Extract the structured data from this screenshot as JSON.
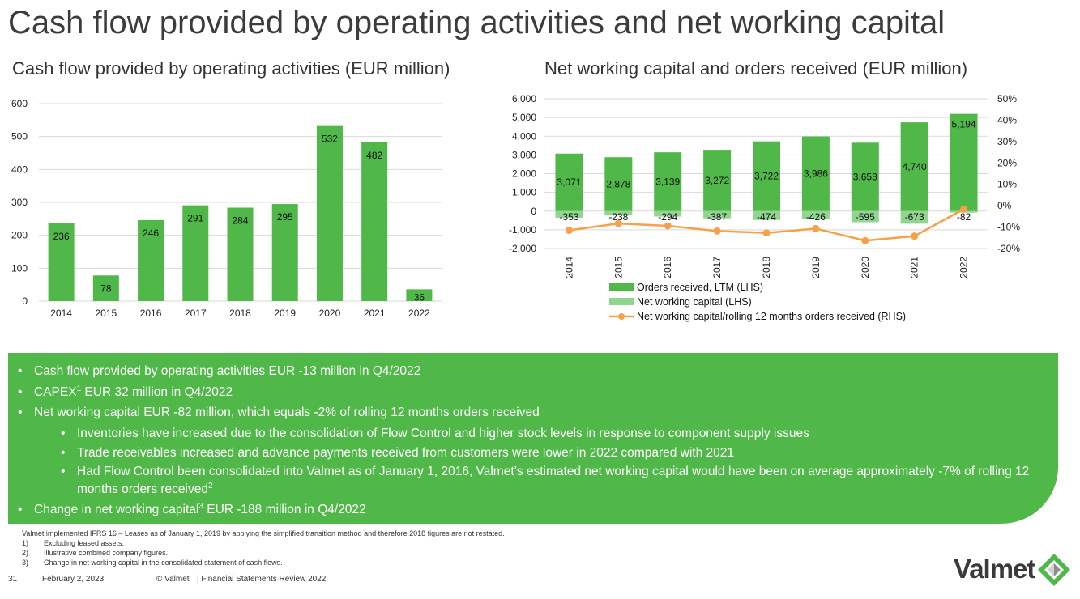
{
  "slide": {
    "title": "Cash flow provided by operating activities and net working capital",
    "left_subtitle": "Cash flow provided by operating activities (EUR million)",
    "right_subtitle": "Net working capital and orders received (EUR million)"
  },
  "colors": {
    "green": "#50b848",
    "light_green": "#92d591",
    "orange": "#f7a04a",
    "gridline": "#d9d9d9"
  },
  "chart_data": [
    {
      "type": "bar",
      "categories": [
        "2014",
        "2015",
        "2016",
        "2017",
        "2018",
        "2019",
        "2020",
        "2021",
        "2022"
      ],
      "values": [
        236,
        78,
        246,
        291,
        284,
        295,
        532,
        482,
        36
      ],
      "ylim": [
        0,
        600
      ],
      "yticks": [
        0,
        100,
        200,
        300,
        400,
        500,
        600
      ],
      "grid": true
    },
    {
      "type": "bar",
      "categories": [
        "2014",
        "2015",
        "2016",
        "2017",
        "2018",
        "2019",
        "2020",
        "2021",
        "2022"
      ],
      "series": [
        {
          "name": "Orders received, LTM (LHS)",
          "values": [
            3071,
            2878,
            3139,
            3272,
            3722,
            3986,
            3653,
            4740,
            5194
          ],
          "labels": [
            "3,071",
            "2,878",
            "3,139",
            "3,272",
            "3,722",
            "3,986",
            "3,653",
            "4,740",
            "5,194"
          ]
        },
        {
          "name": "Net working capital (LHS)",
          "values": [
            -353,
            -238,
            -294,
            -387,
            -474,
            -426,
            -595,
            -673,
            -82
          ],
          "labels": [
            "-353",
            "-238",
            "-294",
            "-387",
            "-474",
            "-426",
            "-595",
            "-673",
            "-82"
          ]
        },
        {
          "name": "Net working capital/rolling 12 months orders received (RHS)",
          "type": "line",
          "axis": "right",
          "values": [
            -11.5,
            -8.3,
            -9.4,
            -11.8,
            -12.7,
            -10.7,
            -16.3,
            -14.2,
            -1.6
          ]
        }
      ],
      "ylim": [
        -2000,
        6000
      ],
      "yticks": [
        "-2,000",
        "-1,000",
        "0",
        "1,000",
        "2,000",
        "3,000",
        "4,000",
        "5,000",
        "6,000"
      ],
      "y2lim": [
        -20,
        50
      ],
      "y2ticks": [
        "-20%",
        "-10%",
        "0%",
        "10%",
        "20%",
        "30%",
        "40%",
        "50%"
      ],
      "legend": "bottom",
      "grid": true
    }
  ],
  "bullets": {
    "b1": "Cash flow provided by operating activities EUR -13 million in Q4/2022",
    "b2_pre": "CAPEX",
    "b2_sup": "1",
    "b2_post": " EUR 32 million in Q4/2022",
    "b3": "Net working capital EUR -82 million, which equals -2% of rolling 12 months orders received",
    "sub1": "Inventories have increased due to the consolidation of Flow Control and higher stock levels in response to component supply issues",
    "sub2": "Trade receivables increased and advance payments received from customers were lower in 2022 compared with 2021",
    "sub3": "Had Flow Control been consolidated into Valmet as of January 1, 2016, Valmet’s estimated net working capital would have been on average approximately -7% of rolling 12 months orders received",
    "sub3_sup": "2",
    "b4_pre": "Change in net working capital",
    "b4_sup": "3",
    "b4_post": " EUR -188 million in Q4/2022"
  },
  "notes": {
    "intro": "Valmet implemented IFRS 16 – Leases as of January 1, 2019 by applying the simplified transition method and therefore 2018 figures are not restated.",
    "items": [
      {
        "num": "1)",
        "text": "Excluding leased assets."
      },
      {
        "num": "2)",
        "text": "Illustrative combined company figures."
      },
      {
        "num": "3)",
        "text": "Change in net working capital in the consolidated statement of cash flows."
      }
    ]
  },
  "footer": {
    "page": "31",
    "date": "February 2, 2023",
    "company": "© Valmet",
    "doc": "| Financial Statements Review 2022"
  },
  "logo": {
    "text": "Valmet",
    "icon": "valmet-diamond-icon"
  }
}
